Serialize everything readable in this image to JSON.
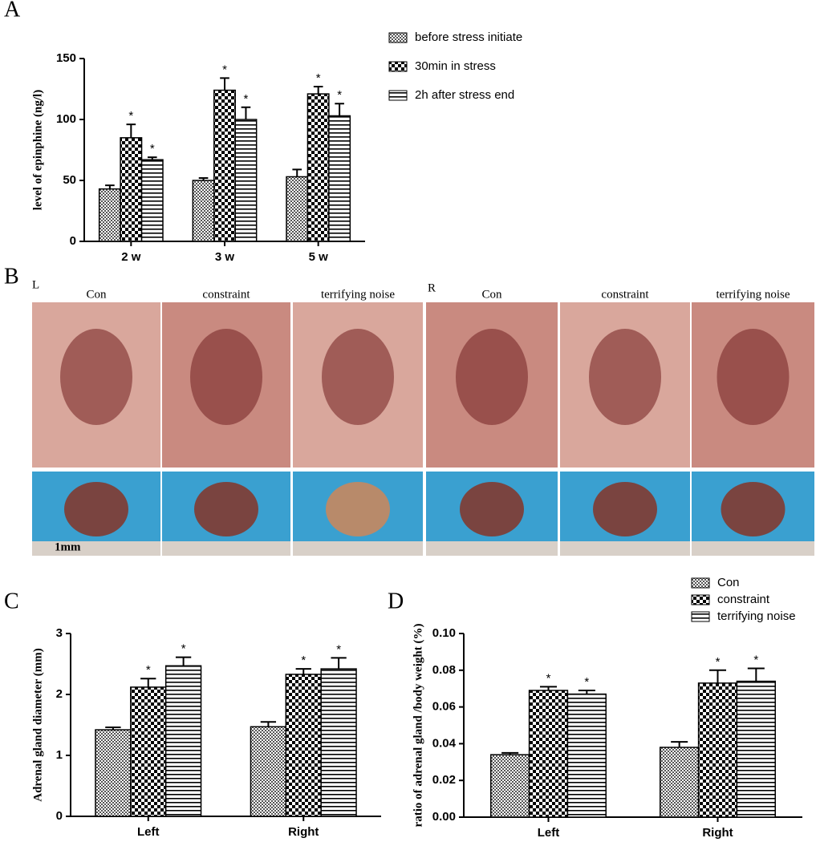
{
  "chart_data": [
    {
      "type": "bar",
      "panel": "A",
      "ylabel": "level of epinphine (ng/l)",
      "categories": [
        "2 w",
        "3 w",
        "5 w"
      ],
      "ylim": [
        0,
        150
      ],
      "yticks": [
        0,
        50,
        100,
        150
      ],
      "legend": "outside-right",
      "series": [
        {
          "name": "before stress initiate",
          "pattern": "fine-check",
          "values": [
            43,
            50,
            53
          ],
          "errors": [
            3,
            2,
            6
          ]
        },
        {
          "name": "30min in stress",
          "pattern": "check",
          "values": [
            85,
            124,
            121
          ],
          "errors": [
            11,
            10,
            6
          ],
          "markers": [
            "*",
            "*",
            "*"
          ]
        },
        {
          "name": "2h after stress end",
          "pattern": "stripes",
          "values": [
            67,
            100,
            103
          ],
          "errors": [
            2,
            10,
            10
          ],
          "markers": [
            "*",
            "*",
            "*"
          ]
        }
      ]
    },
    {
      "type": "bar",
      "panel": "C",
      "ylabel": "Adrenal gland diameter  (mm)",
      "categories": [
        "Left",
        "Right"
      ],
      "ylim": [
        0,
        3
      ],
      "yticks": [
        0,
        1,
        2,
        3
      ],
      "legend": false,
      "series": [
        {
          "pattern": "fine-check",
          "values": [
            1.42,
            1.47
          ],
          "errors": [
            0.04,
            0.08
          ]
        },
        {
          "pattern": "check",
          "values": [
            2.12,
            2.33
          ],
          "errors": [
            0.14,
            0.09
          ],
          "markers": [
            "*",
            "*"
          ]
        },
        {
          "pattern": "stripes",
          "values": [
            2.47,
            2.42
          ],
          "errors": [
            0.14,
            0.18
          ],
          "markers": [
            "*",
            "*"
          ]
        }
      ]
    },
    {
      "type": "bar",
      "panel": "D",
      "ylabel": "ratio of adrenal gland /body weight (%)",
      "categories": [
        "Left",
        "Right"
      ],
      "ylim": [
        0,
        0.1
      ],
      "yticks": [
        {
          "value": 0,
          "label": "0.00"
        },
        {
          "value": 0.02,
          "label": "0.02"
        },
        {
          "value": 0.04,
          "label": "0.04"
        },
        {
          "value": 0.06,
          "label": "0.06"
        },
        {
          "value": 0.08,
          "label": "0.08"
        },
        {
          "value": 0.1,
          "label": "0.10"
        }
      ],
      "legend": "upper-right",
      "series": [
        {
          "name": "Con",
          "pattern": "fine-check",
          "values": [
            0.034,
            0.038
          ],
          "errors": [
            0.001,
            0.003
          ]
        },
        {
          "name": "constraint",
          "pattern": "check",
          "values": [
            0.069,
            0.073
          ],
          "errors": [
            0.002,
            0.007
          ],
          "markers": [
            "*",
            "*"
          ]
        },
        {
          "name": "terrifying noise",
          "pattern": "stripes",
          "values": [
            0.067,
            0.074
          ],
          "errors": [
            0.002,
            0.007
          ],
          "markers": [
            "*",
            "*"
          ]
        }
      ]
    }
  ],
  "photo_panel": {
    "panel": "B",
    "left_label": "L",
    "right_label": "R",
    "columns": [
      "Con",
      "constraint",
      "terrifying noise",
      "Con",
      "constraint",
      "terrifying noise"
    ],
    "scale_label": "1mm"
  }
}
